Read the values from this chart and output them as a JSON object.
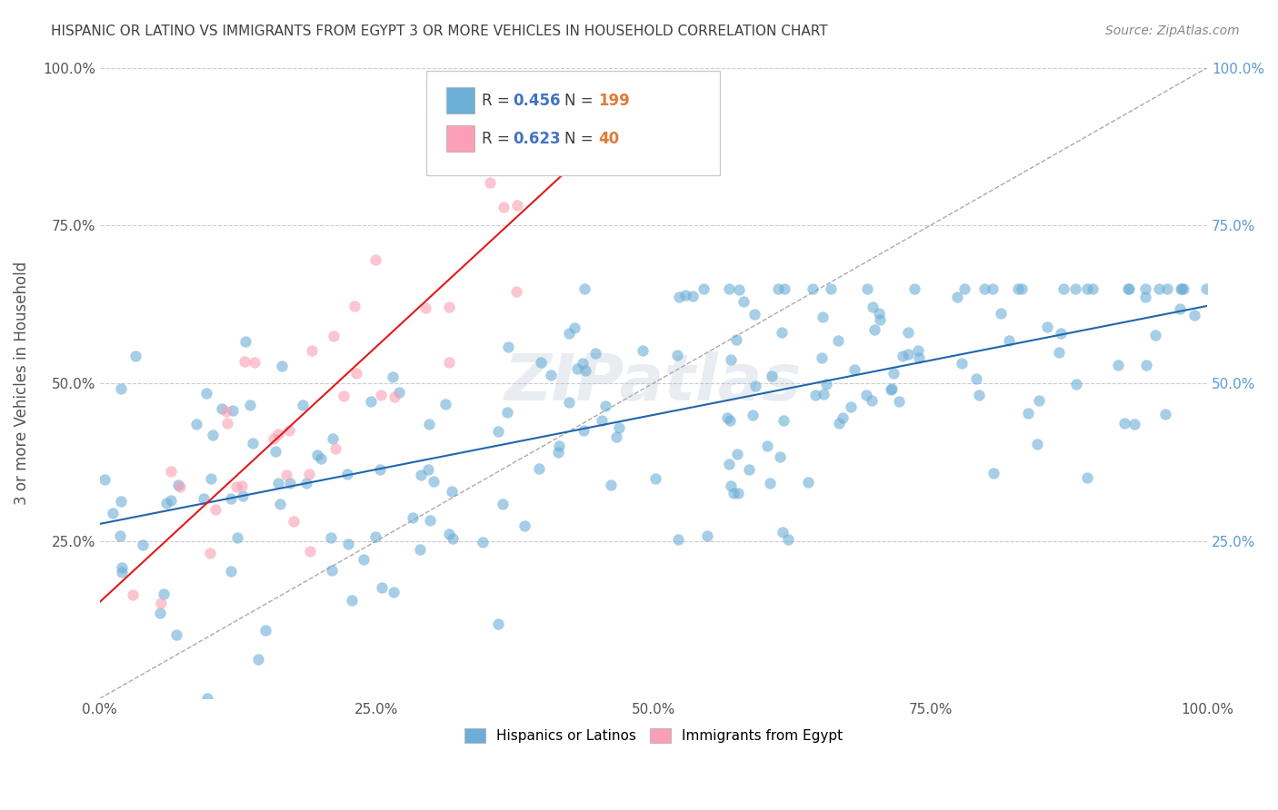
{
  "title": "HISPANIC OR LATINO VS IMMIGRANTS FROM EGYPT 3 OR MORE VEHICLES IN HOUSEHOLD CORRELATION CHART",
  "source": "Source: ZipAtlas.com",
  "ylabel": "3 or more Vehicles in Household",
  "xmin": 0.0,
  "xmax": 1.0,
  "ymin": 0.0,
  "ymax": 1.0,
  "xtick_labels": [
    "0.0%",
    "25.0%",
    "50.0%",
    "75.0%",
    "100.0%"
  ],
  "xtick_vals": [
    0.0,
    0.25,
    0.5,
    0.75,
    1.0
  ],
  "ytick_labels_left": [
    "",
    "25.0%",
    "50.0%",
    "75.0%",
    "100.0%"
  ],
  "ytick_vals": [
    0.0,
    0.25,
    0.5,
    0.75,
    1.0
  ],
  "legend_label1": "Hispanics or Latinos",
  "legend_label2": "Immigrants from Egypt",
  "r1": 0.456,
  "n1": 199,
  "r2": 0.623,
  "n2": 40,
  "color1": "#6baed6",
  "color2": "#fa9fb5",
  "line_color1": "#2166ac",
  "line_color2": "#e31a1c",
  "watermark": "ZIPatlas",
  "background_color": "#ffffff",
  "grid_color": "#cccccc",
  "title_color": "#404040"
}
